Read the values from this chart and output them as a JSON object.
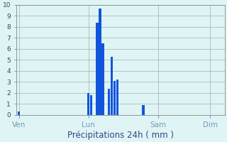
{
  "xlabel": "Précipitations 24h ( mm )",
  "bar_color": "#1155dd",
  "background_color": "#dff5f5",
  "grid_color": "#aabbbb",
  "ylim": [
    0,
    10
  ],
  "yticks": [
    0,
    1,
    2,
    3,
    4,
    5,
    6,
    7,
    8,
    9,
    10
  ],
  "x_tick_labels": [
    "Ven",
    "Lun",
    "Sam",
    "Dim"
  ],
  "x_tick_positions": [
    1,
    25,
    49,
    67
  ],
  "xlim": [
    0,
    72
  ],
  "bar_values": [
    0.3,
    0.0,
    0.0,
    0.0,
    0.0,
    0.0,
    0.0,
    0.0,
    0.0,
    0.0,
    0.0,
    0.0,
    0.0,
    0.0,
    0.0,
    0.0,
    0.0,
    0.0,
    0.0,
    0.0,
    0.0,
    0.0,
    0.0,
    0.0,
    2.0,
    1.8,
    0.0,
    8.4,
    9.7,
    6.5,
    0.0,
    2.4,
    5.3,
    3.1,
    3.2,
    0.0,
    0.0,
    0.0,
    0.0,
    0.0,
    0.0,
    0.0,
    0.0,
    0.9
  ],
  "bar_positions": [
    1,
    2,
    3,
    4,
    5,
    6,
    7,
    8,
    9,
    10,
    11,
    12,
    13,
    14,
    15,
    16,
    17,
    18,
    19,
    20,
    21,
    22,
    23,
    24,
    25,
    26,
    27,
    28,
    29,
    30,
    31,
    32,
    33,
    34,
    35,
    36,
    37,
    38,
    39,
    40,
    41,
    42,
    43,
    44
  ]
}
